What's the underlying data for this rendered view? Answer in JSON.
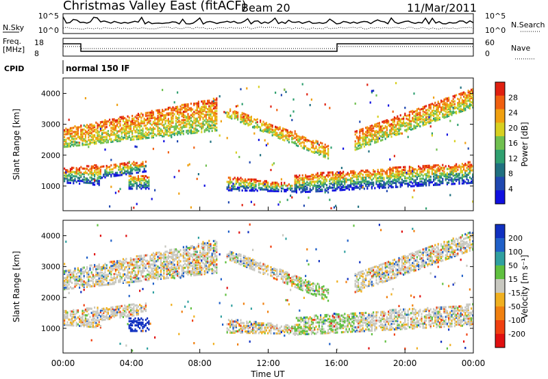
{
  "header": {
    "title": "Christmas Valley East (fitACF)",
    "beam": "Beam 20",
    "date": "11/Mar/2011"
  },
  "param_panels": {
    "nsky_label": "N.Sky",
    "nsky_ticks": [
      "10^5",
      "10^0"
    ],
    "nsearch_label": "N.Search",
    "nsearch_ticks": [
      "10^5",
      "10^0"
    ],
    "freq_label_1": "Freq.",
    "freq_label_2": "[MHz]",
    "freq_ticks": [
      "18",
      "8"
    ],
    "nave_label": "Nave",
    "nave_ticks": [
      "60",
      "0"
    ],
    "cpid_label": "CPID",
    "cpid_text": "normal 150 IF"
  },
  "chart_data": [
    {
      "type": "heatmap",
      "title": "",
      "xlabel": "Time UT",
      "ylabel": "Slant Range [km]",
      "x_ticks": [
        "00:00",
        "04:00",
        "08:00",
        "12:00",
        "16:00",
        "20:00",
        "00:00"
      ],
      "y_ticks": [
        "1000",
        "2000",
        "3000",
        "4000"
      ],
      "ylim": [
        200,
        4500
      ],
      "colorbar": {
        "label": "Power [dB]",
        "ticks": [
          "4",
          "8",
          "12",
          "16",
          "20",
          "24",
          "28"
        ],
        "colors": [
          "#1010e0",
          "#2048b0",
          "#207080",
          "#30a070",
          "#70c050",
          "#d8d020",
          "#f0a010",
          "#f06010",
          "#e02010"
        ]
      }
    },
    {
      "type": "heatmap",
      "title": "",
      "xlabel": "Time UT",
      "ylabel": "Slant Range [km]",
      "x_ticks": [
        "00:00",
        "04:00",
        "08:00",
        "12:00",
        "16:00",
        "20:00",
        "00:00"
      ],
      "y_ticks": [
        "1000",
        "2000",
        "3000",
        "4000"
      ],
      "ylim": [
        200,
        4500
      ],
      "colorbar": {
        "label": "Velocity [m s⁻¹]",
        "ticks": [
          "200",
          "100",
          "50",
          "15",
          "-15",
          "-50",
          "-100",
          "-200"
        ],
        "colors": [
          "#1030c0",
          "#2060c8",
          "#30a0a0",
          "#60c040",
          "#c8c8c0",
          "#f0b020",
          "#f08010",
          "#f04010",
          "#e01010"
        ]
      }
    }
  ]
}
